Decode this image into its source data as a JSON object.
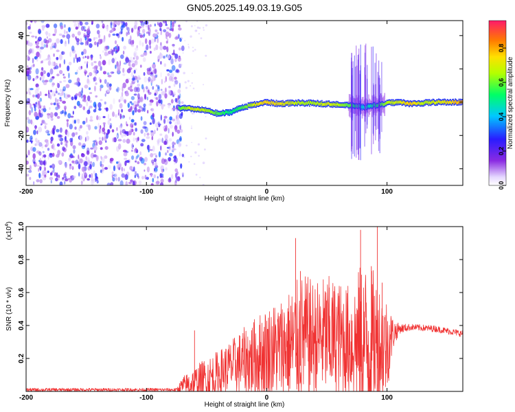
{
  "title": "GN05.2025.149.03.19.G05",
  "colors": {
    "signal": "#f03232",
    "axis": "#000000",
    "noise": "#7a2cf0"
  },
  "chart_data": [
    {
      "type": "heatmap",
      "xlabel": "Height of straight line (km)",
      "ylabel": "Frequency (Hz)",
      "xlim": [
        -200,
        163
      ],
      "ylim": [
        -50,
        49
      ],
      "x_ticks": [
        -200,
        -100,
        0,
        100
      ],
      "y_ticks": [
        -40,
        -20,
        0,
        20,
        40
      ],
      "colorbar": {
        "label": "Normalized spectral amplitude",
        "range": [
          0,
          0.96
        ],
        "ticks": [
          "0.0",
          "0.2",
          "0.4",
          "0.6",
          "0.8"
        ],
        "colormap": "rainbow (purple-blue-cyan-green-yellow-red)"
      },
      "noise_region_x": [
        -200,
        -73
      ],
      "ridge": {
        "x": [
          -73,
          -62,
          -50,
          -40,
          -30,
          -20,
          -10,
          0,
          10,
          20,
          30,
          40,
          50,
          60,
          70,
          80,
          90,
          100,
          110,
          120,
          130,
          140,
          150,
          163
        ],
        "frequency": [
          -3.5,
          -4,
          -5,
          -7,
          -6,
          -3,
          -1.5,
          0,
          -1,
          -0.5,
          -0.5,
          -0.7,
          -1,
          -1.5,
          -2,
          -3,
          -2,
          -0.5,
          0,
          -1,
          -0.5,
          0,
          0,
          0
        ],
        "amplitude": [
          0.6,
          0.75,
          0.7,
          0.6,
          0.5,
          0.6,
          0.75,
          0.85,
          0.8,
          0.75,
          0.7,
          0.7,
          0.75,
          0.7,
          0.6,
          0.4,
          0.5,
          0.7,
          0.75,
          0.85,
          0.7,
          0.75,
          0.8,
          0.9
        ]
      }
    },
    {
      "type": "line",
      "xlabel": "Height of straight line (km)",
      "ylabel": "SNR (10 * v/v)",
      "scale_label": "(x10",
      "scale_exp": "4",
      "scale_close": ")",
      "xlim": [
        -200,
        163
      ],
      "ylim": [
        0,
        1.0
      ],
      "x_ticks": [
        -200,
        -100,
        0,
        100
      ],
      "y_ticks": [
        "0.2",
        "0.4",
        "0.6",
        "0.8",
        "1.0"
      ],
      "series": [
        {
          "color": "#f03232",
          "envelope_x": [
            -200,
            -150,
            -75,
            -70,
            -60,
            -50,
            -40,
            -30,
            -20,
            -10,
            0,
            10,
            20,
            30,
            40,
            50,
            60,
            70,
            80,
            90,
            100,
            105,
            110,
            120,
            140,
            163
          ],
          "envelope_base": [
            0.01,
            0.01,
            0.01,
            0.03,
            0.05,
            0.07,
            0.1,
            0.15,
            0.18,
            0.2,
            0.24,
            0.26,
            0.28,
            0.32,
            0.32,
            0.33,
            0.32,
            0.3,
            0.3,
            0.28,
            0.28,
            0.35,
            0.38,
            0.39,
            0.38,
            0.35
          ],
          "envelope_amp": [
            0.01,
            0.01,
            0.01,
            0.06,
            0.1,
            0.14,
            0.15,
            0.16,
            0.2,
            0.25,
            0.28,
            0.3,
            0.35,
            0.4,
            0.35,
            0.38,
            0.35,
            0.35,
            0.5,
            0.45,
            0.3,
            0.1,
            0.03,
            0.02,
            0.02,
            0.02
          ],
          "spikes": [
            {
              "x": -60,
              "y": 0.37
            },
            {
              "x": 20,
              "y": 0.52
            },
            {
              "x": 24,
              "y": 0.93
            },
            {
              "x": 28,
              "y": 0.73
            },
            {
              "x": 52,
              "y": 0.63
            },
            {
              "x": 60,
              "y": 0.58
            },
            {
              "x": 78,
              "y": 0.98
            },
            {
              "x": 87,
              "y": 0.76
            },
            {
              "x": 92,
              "y": 1.0
            },
            {
              "x": 96,
              "y": 0.66
            }
          ]
        }
      ]
    }
  ]
}
